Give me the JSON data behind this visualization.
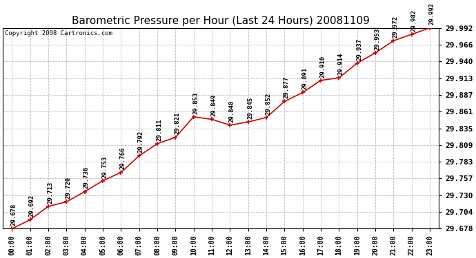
{
  "title": "Barometric Pressure per Hour (Last 24 Hours) 20081109",
  "copyright": "Copyright 2008 Cartronics.com",
  "hours": [
    0,
    1,
    2,
    3,
    4,
    5,
    6,
    7,
    8,
    9,
    10,
    11,
    12,
    13,
    14,
    15,
    16,
    17,
    18,
    19,
    20,
    21,
    22,
    23
  ],
  "x_labels": [
    "00:00",
    "01:00",
    "02:00",
    "03:00",
    "04:00",
    "05:00",
    "06:00",
    "07:00",
    "08:00",
    "09:00",
    "10:00",
    "11:00",
    "12:00",
    "13:00",
    "14:00",
    "15:00",
    "16:00",
    "17:00",
    "18:00",
    "19:00",
    "20:00",
    "21:00",
    "22:00",
    "23:00"
  ],
  "values": [
    29.678,
    29.692,
    29.713,
    29.72,
    29.736,
    29.753,
    29.766,
    29.792,
    29.811,
    29.821,
    29.853,
    29.849,
    29.84,
    29.845,
    29.852,
    29.877,
    29.891,
    29.91,
    29.914,
    29.937,
    29.953,
    29.972,
    29.982,
    29.992
  ],
  "y_ticks": [
    29.678,
    29.704,
    29.73,
    29.757,
    29.783,
    29.809,
    29.835,
    29.861,
    29.887,
    29.913,
    29.94,
    29.966,
    29.992
  ],
  "line_color": "#cc0000",
  "marker_color": "#cc0000",
  "bg_color": "#ffffff",
  "plot_bg_color": "#ffffff",
  "grid_color": "#bbbbbb",
  "title_fontsize": 11,
  "annotation_fontsize": 6.5,
  "copyright_fontsize": 6.5,
  "ytick_fontsize": 8,
  "xtick_fontsize": 7,
  "ylim_min": 29.678,
  "ylim_max": 29.992
}
